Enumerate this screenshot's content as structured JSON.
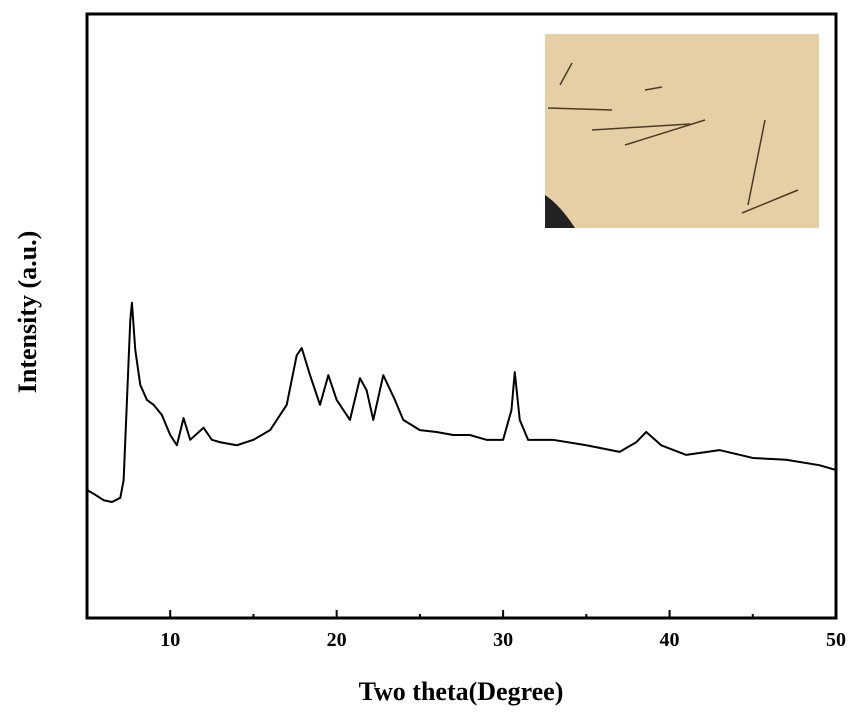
{
  "chart_data": {
    "type": "line",
    "xlabel": "Two theta(Degree)",
    "ylabel": "Intensity (a.u.)",
    "x": [
      5,
      5.5,
      6,
      6.5,
      7,
      7.2,
      7.4,
      7.6,
      7.7,
      7.9,
      8.2,
      8.6,
      9,
      9.5,
      10,
      10.4,
      10.8,
      11.2,
      12,
      12.5,
      13,
      14,
      15,
      16,
      17,
      17.6,
      17.9,
      18.4,
      19,
      19.5,
      20,
      20.8,
      21.4,
      21.8,
      22.2,
      22.8,
      23.5,
      24,
      25,
      26,
      27,
      28,
      29,
      30,
      30.5,
      30.7,
      31,
      31.5,
      33,
      35,
      37,
      38,
      38.6,
      39.5,
      41,
      43,
      45,
      47,
      49,
      50
    ],
    "series": [
      {
        "color": "#000000",
        "values": [
          21.2,
          20.4,
          19.5,
          19.2,
          19.9,
          22.8,
          36,
          49.3,
          52.2,
          44.4,
          38.6,
          36.1,
          35.3,
          33.6,
          30.3,
          28.6,
          33.1,
          29.5,
          31.5,
          29.5,
          29.1,
          28.6,
          29.5,
          31.1,
          35.3,
          43.5,
          44.7,
          40.2,
          35.3,
          40.2,
          36.1,
          32.8,
          39.7,
          37.7,
          32.8,
          40.2,
          36.1,
          32.8,
          31.1,
          30.8,
          30.3,
          30.3,
          29.5,
          29.5,
          34.4,
          40.7,
          32.8,
          29.5,
          29.5,
          28.6,
          27.5,
          29.1,
          30.8,
          28.6,
          27,
          27.8,
          26.5,
          26.2,
          25.3,
          24.5
        ]
      }
    ],
    "xlim": [
      5,
      50
    ],
    "xticks": [
      10,
      20,
      30,
      40,
      50
    ],
    "xminorticks": [
      15,
      25,
      35,
      45
    ],
    "ylim": [
      0,
      100
    ]
  }
}
